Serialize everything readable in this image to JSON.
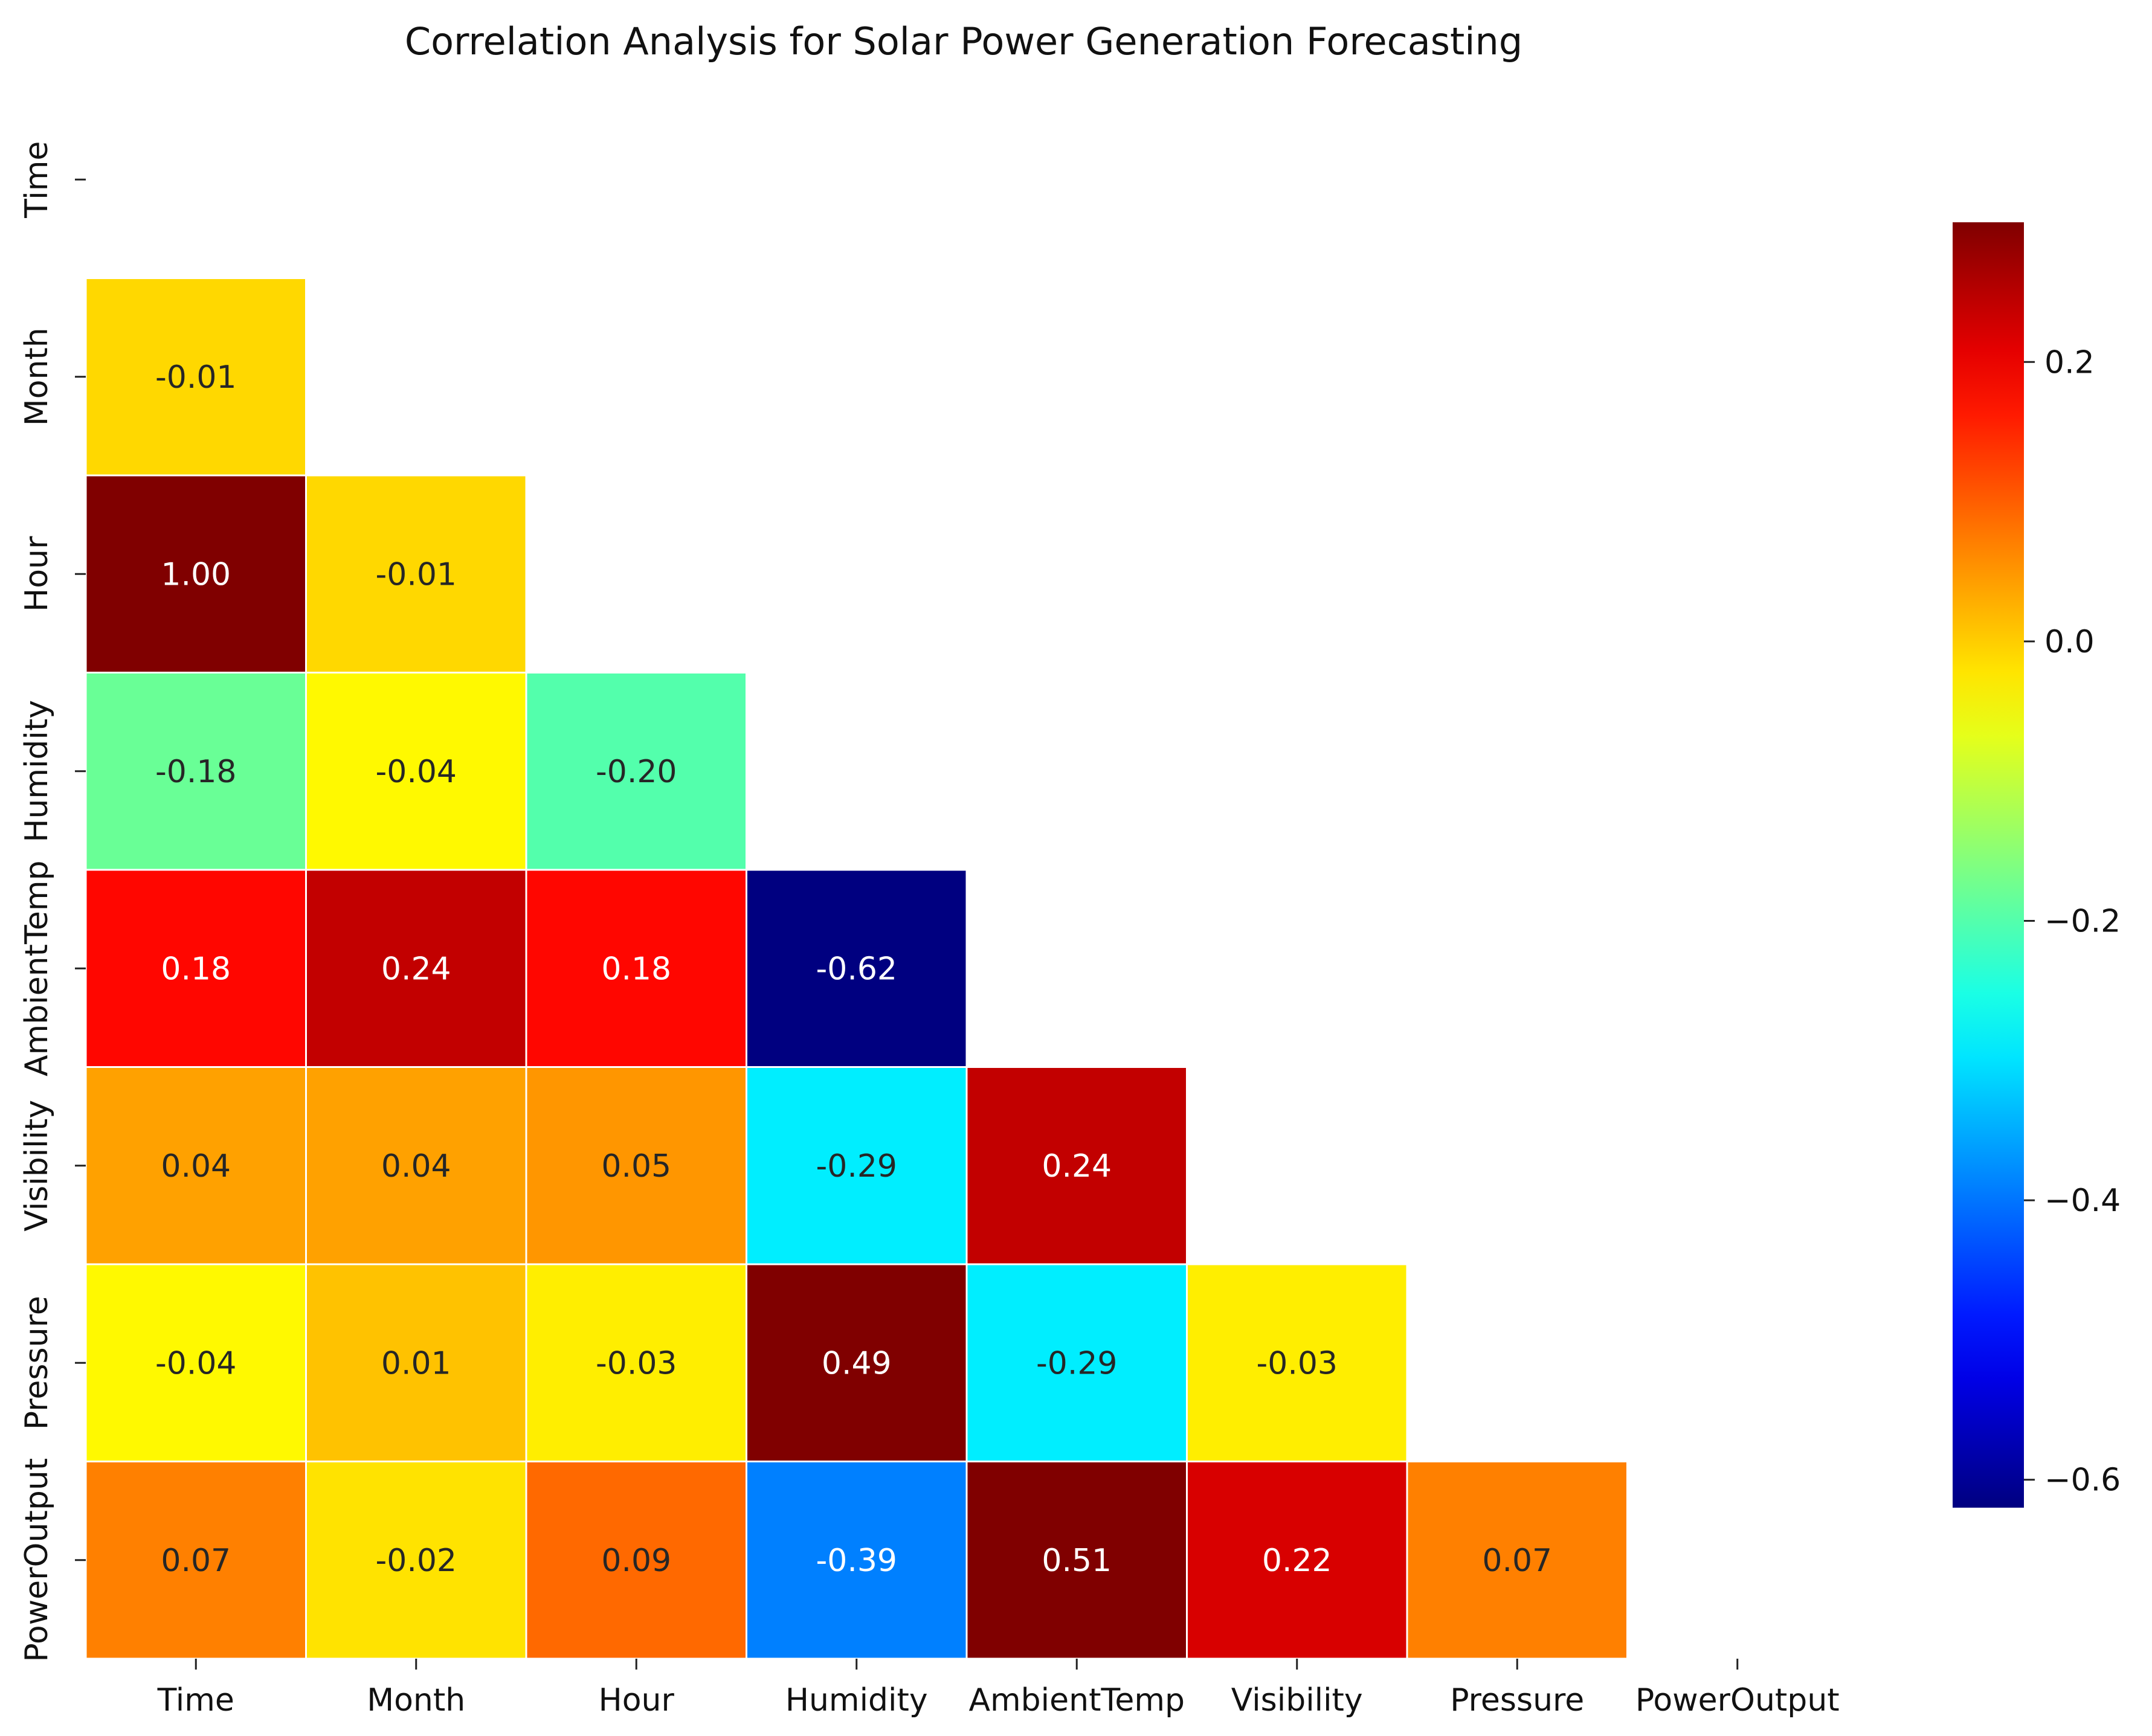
{
  "chart_data": {
    "type": "heatmap",
    "title": "Correlation Analysis for Solar Power Generation Forecasting",
    "variables": [
      "Time",
      "Month",
      "Hour",
      "Humidity",
      "AmbientTemp",
      "Visibility",
      "Pressure",
      "PowerOutput"
    ],
    "mask": "upper-triangle-including-diagonal",
    "cells": [
      {
        "row": "Month",
        "col": "Time",
        "value": -0.01,
        "label": "-0.01"
      },
      {
        "row": "Hour",
        "col": "Time",
        "value": 1.0,
        "label": "1.00"
      },
      {
        "row": "Hour",
        "col": "Month",
        "value": -0.01,
        "label": "-0.01"
      },
      {
        "row": "Humidity",
        "col": "Time",
        "value": -0.18,
        "label": "-0.18"
      },
      {
        "row": "Humidity",
        "col": "Month",
        "value": -0.04,
        "label": "-0.04"
      },
      {
        "row": "Humidity",
        "col": "Hour",
        "value": -0.2,
        "label": "-0.20"
      },
      {
        "row": "AmbientTemp",
        "col": "Time",
        "value": 0.18,
        "label": "0.18"
      },
      {
        "row": "AmbientTemp",
        "col": "Month",
        "value": 0.24,
        "label": "0.24"
      },
      {
        "row": "AmbientTemp",
        "col": "Hour",
        "value": 0.18,
        "label": "0.18"
      },
      {
        "row": "AmbientTemp",
        "col": "Humidity",
        "value": -0.62,
        "label": "-0.62"
      },
      {
        "row": "Visibility",
        "col": "Time",
        "value": 0.04,
        "label": "0.04"
      },
      {
        "row": "Visibility",
        "col": "Month",
        "value": 0.04,
        "label": "0.04"
      },
      {
        "row": "Visibility",
        "col": "Hour",
        "value": 0.05,
        "label": "0.05"
      },
      {
        "row": "Visibility",
        "col": "Humidity",
        "value": -0.29,
        "label": "-0.29"
      },
      {
        "row": "Visibility",
        "col": "AmbientTemp",
        "value": 0.24,
        "label": "0.24"
      },
      {
        "row": "Pressure",
        "col": "Time",
        "value": -0.04,
        "label": "-0.04"
      },
      {
        "row": "Pressure",
        "col": "Month",
        "value": 0.01,
        "label": "0.01"
      },
      {
        "row": "Pressure",
        "col": "Hour",
        "value": -0.03,
        "label": "-0.03"
      },
      {
        "row": "Pressure",
        "col": "Humidity",
        "value": 0.49,
        "label": "0.49"
      },
      {
        "row": "Pressure",
        "col": "AmbientTemp",
        "value": -0.29,
        "label": "-0.29"
      },
      {
        "row": "Pressure",
        "col": "Visibility",
        "value": -0.03,
        "label": "-0.03"
      },
      {
        "row": "PowerOutput",
        "col": "Time",
        "value": 0.07,
        "label": "0.07"
      },
      {
        "row": "PowerOutput",
        "col": "Month",
        "value": -0.02,
        "label": "-0.02"
      },
      {
        "row": "PowerOutput",
        "col": "Hour",
        "value": 0.09,
        "label": "0.09"
      },
      {
        "row": "PowerOutput",
        "col": "Humidity",
        "value": -0.39,
        "label": "-0.39"
      },
      {
        "row": "PowerOutput",
        "col": "AmbientTemp",
        "value": 0.51,
        "label": "0.51"
      },
      {
        "row": "PowerOutput",
        "col": "Visibility",
        "value": 0.22,
        "label": "0.22"
      },
      {
        "row": "PowerOutput",
        "col": "Pressure",
        "value": 0.07,
        "label": "0.07"
      }
    ],
    "colorbar": {
      "colormap": "jet",
      "vmin": -0.62,
      "vmax": 0.3,
      "ticks": [
        0.2,
        0.0,
        -0.2,
        -0.4,
        -0.6
      ],
      "tick_labels": [
        "0.2",
        "0.0",
        "−0.2",
        "−0.4",
        "−0.6"
      ]
    },
    "xlabel": "",
    "ylabel": ""
  }
}
